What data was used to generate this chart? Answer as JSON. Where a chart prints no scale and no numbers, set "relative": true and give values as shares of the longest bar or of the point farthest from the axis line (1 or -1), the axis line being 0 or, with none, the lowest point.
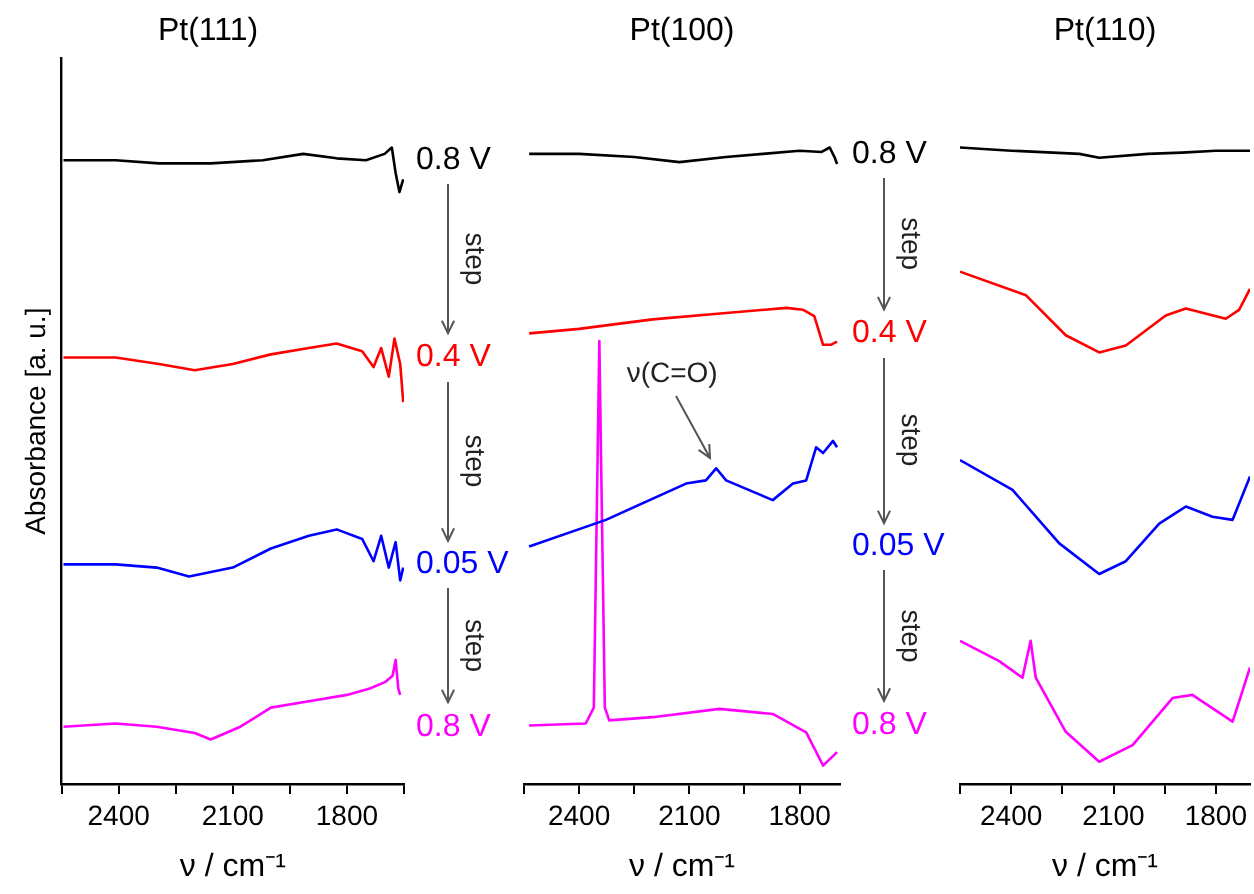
{
  "chart_data": [
    {
      "type": "line",
      "title": "Pt(111)",
      "xlabel": "ν / cm⁻¹",
      "ylabel": "Absorbance [a. u.]",
      "relative": true,
      "legend": false,
      "xlim": [
        2550,
        1650
      ],
      "xticks": [
        {
          "value": 2550,
          "label": null
        },
        2400,
        {
          "value": 2250,
          "label": null
        },
        2100,
        {
          "value": 1950,
          "label": null
        },
        1800,
        {
          "value": 1650,
          "label": null
        }
      ],
      "annotations": [
        "step",
        "step",
        "step"
      ],
      "series": [
        {
          "name": "0.8 V",
          "color": "#000000",
          "x": [
            2545,
            2408,
            2294,
            2158,
            2021,
            1915,
            1827,
            1750,
            1701,
            1682,
            1672,
            1662,
            1652
          ],
          "values": [
            0.98,
            0.98,
            0.975,
            0.975,
            0.98,
            0.99,
            0.983,
            0.98,
            0.99,
            1.0,
            0.96,
            0.93,
            0.95
          ]
        },
        {
          "name": "0.4 V",
          "color": "#ff0000",
          "x": [
            2545,
            2408,
            2294,
            2200,
            2100,
            2000,
            1900,
            1827,
            1760,
            1730,
            1710,
            1690,
            1675,
            1660,
            1652
          ],
          "values": [
            0.67,
            0.67,
            0.66,
            0.65,
            0.66,
            0.675,
            0.685,
            0.692,
            0.68,
            0.655,
            0.685,
            0.64,
            0.7,
            0.66,
            0.6
          ]
        },
        {
          "name": "0.05 V",
          "color": "#0000ff",
          "x": [
            2545,
            2408,
            2300,
            2215,
            2100,
            2000,
            1900,
            1827,
            1760,
            1730,
            1710,
            1690,
            1672,
            1660,
            1652
          ],
          "values": [
            0.345,
            0.345,
            0.34,
            0.326,
            0.34,
            0.37,
            0.39,
            0.4,
            0.385,
            0.35,
            0.39,
            0.34,
            0.38,
            0.32,
            0.34
          ]
        },
        {
          "name": "0.8 V",
          "color": "#ff00ff",
          "x": [
            2545,
            2408,
            2300,
            2200,
            2158,
            2080,
            2000,
            1900,
            1800,
            1740,
            1700,
            1680,
            1672,
            1665,
            1660
          ],
          "values": [
            0.09,
            0.095,
            0.09,
            0.08,
            0.07,
            0.09,
            0.12,
            0.13,
            0.14,
            0.15,
            0.16,
            0.17,
            0.195,
            0.15,
            0.14
          ]
        }
      ]
    },
    {
      "type": "line",
      "title": "Pt(100)",
      "xlabel": "ν / cm⁻¹",
      "relative": true,
      "legend": false,
      "xlim": [
        2550,
        1690
      ],
      "xticks": [
        {
          "value": 2550,
          "label": null
        },
        2400,
        {
          "value": 2250,
          "label": null
        },
        2100,
        {
          "value": 1950,
          "label": null
        },
        1800
      ],
      "annotations": [
        "step",
        "step",
        "step",
        {
          "text": "ν(C=O)",
          "x": 2027,
          "y": 0.496
        }
      ],
      "series": [
        {
          "name": "0.8 V",
          "color": "#000000",
          "x": [
            2536,
            2400,
            2250,
            2127,
            2000,
            1900,
            1800,
            1740,
            1718,
            1705,
            1698
          ],
          "values": [
            0.99,
            0.99,
            0.985,
            0.977,
            0.985,
            0.99,
            0.995,
            0.993,
            1.0,
            0.985,
            0.974
          ]
        },
        {
          "name": "0.4 V",
          "color": "#ff0000",
          "x": [
            2536,
            2400,
            2200,
            2000,
            1836,
            1790,
            1760,
            1736,
            1715,
            1698
          ],
          "values": [
            0.708,
            0.715,
            0.73,
            0.74,
            0.748,
            0.745,
            0.735,
            0.69,
            0.69,
            0.695
          ]
        },
        {
          "name": "0.05 V",
          "color": "#0000ff",
          "x": [
            2536,
            2327,
            2109,
            2055,
            2027,
            2000,
            1873,
            1818,
            1782,
            1755,
            1736,
            1709,
            1698
          ],
          "values": [
            0.373,
            0.415,
            0.472,
            0.477,
            0.496,
            0.477,
            0.446,
            0.472,
            0.477,
            0.529,
            0.52,
            0.539,
            0.529
          ]
        },
        {
          "name": "0.8 V",
          "color": "#ff00ff",
          "x": [
            2536,
            2382,
            2360,
            2350,
            2345,
            2340,
            2330,
            2318,
            2200,
            2018,
            1873,
            1782,
            1736,
            1698
          ],
          "values": [
            0.092,
            0.095,
            0.12,
            0.5,
            0.696,
            0.5,
            0.12,
            0.1,
            0.105,
            0.118,
            0.11,
            0.081,
            0.029,
            0.05
          ]
        }
      ]
    },
    {
      "type": "line",
      "title": "Pt(110)",
      "xlabel": "ν / cm⁻¹",
      "relative": true,
      "legend": false,
      "xlim": [
        2550,
        1700
      ],
      "xticks": [
        {
          "value": 2550,
          "label": null
        },
        2400,
        {
          "value": 2250,
          "label": null
        },
        2100,
        {
          "value": 1950,
          "label": null
        },
        1800
      ],
      "series": [
        {
          "color": "#000000",
          "x": [
            2550,
            2400,
            2200,
            2142,
            2000,
            1900,
            1800,
            1700
          ],
          "values": [
            1.0,
            0.995,
            0.99,
            0.984,
            0.99,
            0.992,
            0.995,
            0.995
          ]
        },
        {
          "color": "#ff0000",
          "x": [
            2550,
            2357,
            2240,
            2142,
            2064,
            1947,
            1888,
            1771,
            1732,
            1700
          ],
          "values": [
            0.805,
            0.768,
            0.705,
            0.678,
            0.689,
            0.736,
            0.747,
            0.731,
            0.745,
            0.778
          ]
        },
        {
          "color": "#0000ff",
          "x": [
            2550,
            2396,
            2259,
            2142,
            2064,
            1966,
            1888,
            1810,
            1751,
            1700
          ],
          "values": [
            0.509,
            0.462,
            0.378,
            0.33,
            0.35,
            0.409,
            0.436,
            0.42,
            0.415,
            0.483
          ]
        },
        {
          "color": "#ff00ff",
          "x": [
            2550,
            2435,
            2367,
            2343,
            2328,
            2240,
            2142,
            2044,
            1927,
            1869,
            1751,
            1700
          ],
          "values": [
            0.225,
            0.193,
            0.167,
            0.225,
            0.167,
            0.082,
            0.035,
            0.061,
            0.135,
            0.14,
            0.098,
            0.183
          ]
        }
      ]
    }
  ]
}
